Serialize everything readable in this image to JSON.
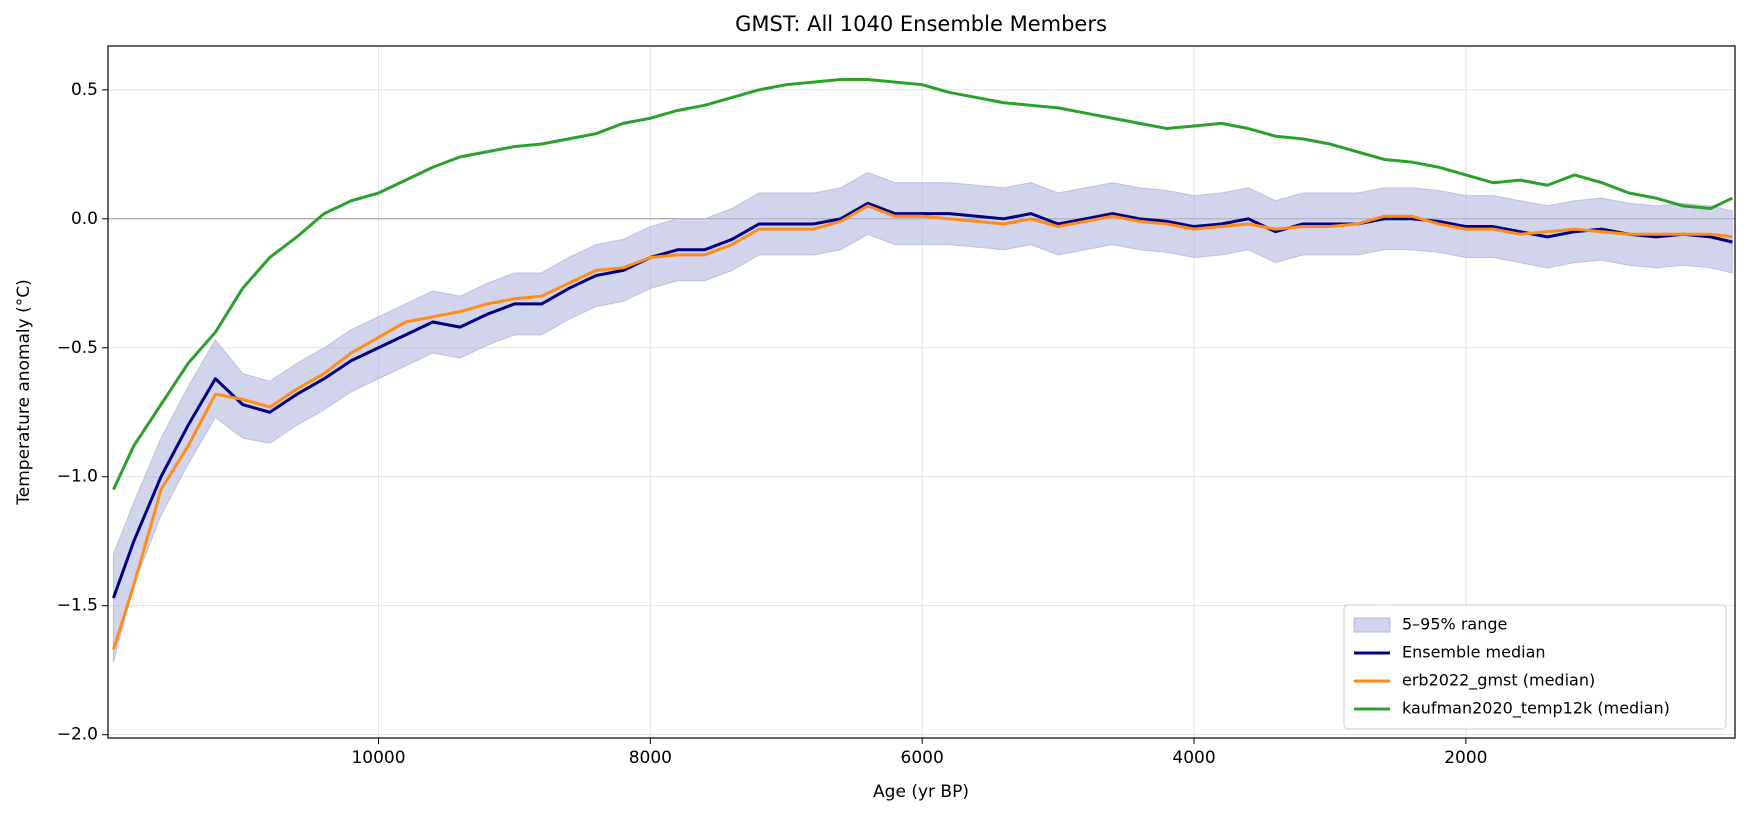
{
  "chart_data": {
    "type": "line",
    "title": "GMST: All 1040 Ensemble Members",
    "xlabel": "Age (yr BP)",
    "ylabel": "Temperature anomaly (°C)",
    "x": [
      11950,
      11800,
      11600,
      11400,
      11200,
      11000,
      10800,
      10600,
      10400,
      10200,
      10000,
      9800,
      9600,
      9400,
      9200,
      9000,
      8800,
      8600,
      8400,
      8200,
      8000,
      7800,
      7600,
      7400,
      7200,
      7000,
      6800,
      6600,
      6400,
      6200,
      6000,
      5800,
      5600,
      5400,
      5200,
      5000,
      4800,
      4600,
      4400,
      4200,
      4000,
      3800,
      3600,
      3400,
      3200,
      3000,
      2800,
      2600,
      2400,
      2200,
      2000,
      1800,
      1600,
      1400,
      1200,
      1000,
      800,
      600,
      400,
      200,
      40
    ],
    "series": [
      {
        "name": "5–95% range",
        "color": "#b3b7dc",
        "lower": [
          -1.72,
          -1.42,
          -1.15,
          -0.95,
          -0.77,
          -0.85,
          -0.87,
          -0.8,
          -0.74,
          -0.67,
          -0.62,
          -0.57,
          -0.52,
          -0.54,
          -0.49,
          -0.45,
          -0.45,
          -0.39,
          -0.34,
          -0.32,
          -0.27,
          -0.24,
          -0.24,
          -0.2,
          -0.14,
          -0.14,
          -0.14,
          -0.12,
          -0.06,
          -0.1,
          -0.1,
          -0.1,
          -0.11,
          -0.12,
          -0.1,
          -0.14,
          -0.12,
          -0.1,
          -0.12,
          -0.13,
          -0.15,
          -0.14,
          -0.12,
          -0.17,
          -0.14,
          -0.14,
          -0.14,
          -0.12,
          -0.12,
          -0.13,
          -0.15,
          -0.15,
          -0.17,
          -0.19,
          -0.17,
          -0.16,
          -0.18,
          -0.19,
          -0.18,
          -0.19,
          -0.21
        ],
        "upper": [
          -1.3,
          -1.1,
          -0.85,
          -0.65,
          -0.47,
          -0.6,
          -0.63,
          -0.56,
          -0.5,
          -0.43,
          -0.38,
          -0.33,
          -0.28,
          -0.3,
          -0.25,
          -0.21,
          -0.21,
          -0.15,
          -0.1,
          -0.08,
          -0.03,
          0.0,
          0.0,
          0.04,
          0.1,
          0.1,
          0.1,
          0.12,
          0.18,
          0.14,
          0.14,
          0.14,
          0.13,
          0.12,
          0.14,
          0.1,
          0.12,
          0.14,
          0.12,
          0.11,
          0.09,
          0.1,
          0.12,
          0.07,
          0.1,
          0.1,
          0.1,
          0.12,
          0.12,
          0.11,
          0.09,
          0.09,
          0.07,
          0.05,
          0.07,
          0.08,
          0.06,
          0.05,
          0.06,
          0.05,
          0.03
        ]
      },
      {
        "name": "Ensemble median",
        "color": "#000080",
        "values": [
          -1.47,
          -1.25,
          -1.0,
          -0.8,
          -0.62,
          -0.72,
          -0.75,
          -0.68,
          -0.62,
          -0.55,
          -0.5,
          -0.45,
          -0.4,
          -0.42,
          -0.37,
          -0.33,
          -0.33,
          -0.27,
          -0.22,
          -0.2,
          -0.15,
          -0.12,
          -0.12,
          -0.08,
          -0.02,
          -0.02,
          -0.02,
          0.0,
          0.06,
          0.02,
          0.02,
          0.02,
          0.01,
          0.0,
          0.02,
          -0.02,
          0.0,
          0.02,
          0.0,
          -0.01,
          -0.03,
          -0.02,
          0.0,
          -0.05,
          -0.02,
          -0.02,
          -0.02,
          0.0,
          0.0,
          -0.01,
          -0.03,
          -0.03,
          -0.05,
          -0.07,
          -0.05,
          -0.04,
          -0.06,
          -0.07,
          -0.06,
          -0.07,
          -0.09
        ]
      },
      {
        "name": "erb2022_gmst (median)",
        "color": "#ff8c1a",
        "values": [
          -1.67,
          -1.42,
          -1.05,
          -0.88,
          -0.68,
          -0.7,
          -0.73,
          -0.66,
          -0.6,
          -0.52,
          -0.46,
          -0.4,
          -0.38,
          -0.36,
          -0.33,
          -0.31,
          -0.3,
          -0.25,
          -0.2,
          -0.19,
          -0.15,
          -0.14,
          -0.14,
          -0.1,
          -0.04,
          -0.04,
          -0.04,
          -0.01,
          0.05,
          0.01,
          0.01,
          0.0,
          -0.01,
          -0.02,
          0.0,
          -0.03,
          -0.01,
          0.01,
          -0.01,
          -0.02,
          -0.04,
          -0.03,
          -0.02,
          -0.04,
          -0.03,
          -0.03,
          -0.02,
          0.01,
          0.01,
          -0.02,
          -0.04,
          -0.04,
          -0.06,
          -0.05,
          -0.04,
          -0.05,
          -0.06,
          -0.06,
          -0.06,
          -0.06,
          -0.07
        ]
      },
      {
        "name": "kaufman2020_temp12k (median)",
        "color": "#2ca02c",
        "values": [
          -1.05,
          -0.88,
          -0.72,
          -0.56,
          -0.44,
          -0.27,
          -0.15,
          -0.07,
          0.02,
          0.07,
          0.1,
          0.15,
          0.2,
          0.24,
          0.26,
          0.28,
          0.29,
          0.31,
          0.33,
          0.37,
          0.39,
          0.42,
          0.44,
          0.47,
          0.5,
          0.52,
          0.53,
          0.54,
          0.54,
          0.53,
          0.52,
          0.49,
          0.47,
          0.45,
          0.44,
          0.43,
          0.41,
          0.39,
          0.37,
          0.35,
          0.36,
          0.37,
          0.35,
          0.32,
          0.31,
          0.29,
          0.26,
          0.23,
          0.22,
          0.2,
          0.17,
          0.14,
          0.15,
          0.13,
          0.17,
          0.14,
          0.1,
          0.08,
          0.05,
          0.04,
          0.08
        ]
      }
    ],
    "xlim": [
      11990,
      20
    ],
    "ylim": [
      -2.013,
      0.67
    ],
    "xticks": [
      10000,
      8000,
      6000,
      4000,
      2000
    ],
    "yticks": [
      {
        "value": 0.5,
        "label": "0.5"
      },
      {
        "value": 0.0,
        "label": "0.0"
      },
      {
        "value": -0.5,
        "label": "−0.5"
      },
      {
        "value": -1.0,
        "label": "−1.0"
      },
      {
        "value": -1.5,
        "label": "−1.5"
      },
      {
        "value": -2.0,
        "label": "−2.0"
      }
    ],
    "grid": true,
    "zero_line": true,
    "legend": "lower right"
  }
}
